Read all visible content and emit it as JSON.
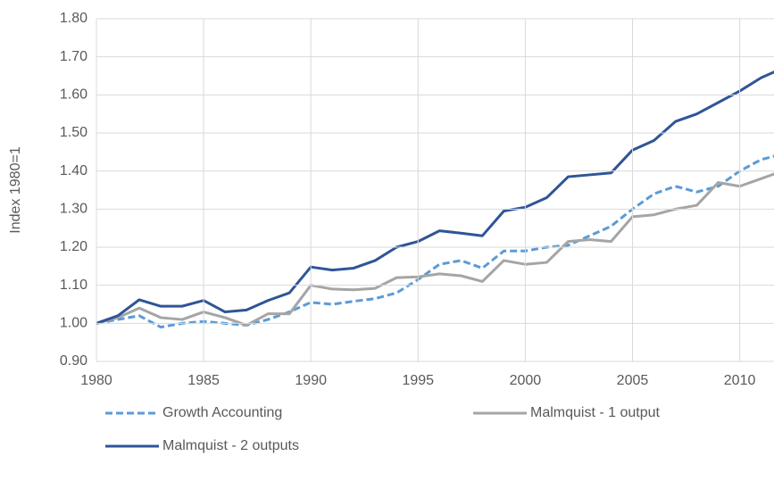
{
  "chart_data": {
    "type": "line",
    "y_label": "Index 1980=1",
    "x": [
      1980,
      1981,
      1982,
      1983,
      1984,
      1985,
      1986,
      1987,
      1988,
      1989,
      1990,
      1991,
      1992,
      1993,
      1994,
      1995,
      1996,
      1997,
      1998,
      1999,
      2000,
      2001,
      2002,
      2003,
      2004,
      2005,
      2006,
      2007,
      2008,
      2009,
      2010,
      2011,
      2012
    ],
    "series": [
      {
        "name": "Growth Accounting",
        "color": "#5b9bd5",
        "dashed": true,
        "values": [
          1.0,
          1.01,
          1.02,
          0.99,
          1.0,
          1.005,
          1.0,
          0.995,
          1.01,
          1.03,
          1.055,
          1.05,
          1.058,
          1.065,
          1.08,
          1.115,
          1.155,
          1.165,
          1.145,
          1.19,
          1.19,
          1.2,
          1.205,
          1.23,
          1.255,
          1.3,
          1.34,
          1.36,
          1.345,
          1.36,
          1.4,
          1.43,
          1.445
        ]
      },
      {
        "name": "Malmquist - 1 output",
        "color": "#a5a5a5",
        "dashed": false,
        "values": [
          1.0,
          1.015,
          1.04,
          1.015,
          1.01,
          1.03,
          1.015,
          0.995,
          1.025,
          1.025,
          1.1,
          1.09,
          1.088,
          1.092,
          1.12,
          1.122,
          1.13,
          1.125,
          1.11,
          1.165,
          1.155,
          1.16,
          1.215,
          1.22,
          1.215,
          1.28,
          1.285,
          1.3,
          1.31,
          1.37,
          1.36,
          1.38,
          1.4
        ]
      },
      {
        "name": "Malmquist - 2 outputs",
        "color": "#2f5597",
        "dashed": false,
        "values": [
          1.0,
          1.02,
          1.062,
          1.045,
          1.045,
          1.06,
          1.03,
          1.035,
          1.06,
          1.08,
          1.148,
          1.14,
          1.145,
          1.165,
          1.2,
          1.215,
          1.243,
          1.237,
          1.23,
          1.295,
          1.305,
          1.33,
          1.385,
          1.39,
          1.395,
          1.455,
          1.48,
          1.53,
          1.55,
          1.58,
          1.61,
          1.645,
          1.67
        ]
      }
    ],
    "xlim": [
      1980,
      2011.6
    ],
    "xticks": [
      1980,
      1985,
      1990,
      1995,
      2000,
      2005,
      2010
    ],
    "ylim": [
      0.9,
      1.8
    ],
    "yticks": [
      {
        "value": 0.9,
        "label": "0.90"
      },
      {
        "value": 1.0,
        "label": "1.00"
      },
      {
        "value": 1.1,
        "label": "1.10"
      },
      {
        "value": 1.2,
        "label": "1.20"
      },
      {
        "value": 1.3,
        "label": "1.30"
      },
      {
        "value": 1.4,
        "label": "1.40"
      },
      {
        "value": 1.5,
        "label": "1.50"
      },
      {
        "value": 1.6,
        "label": "1.60"
      },
      {
        "value": 1.7,
        "label": "1.70"
      },
      {
        "value": 1.8,
        "label": "1.80"
      }
    ],
    "grid": true,
    "legend": "bottom"
  }
}
